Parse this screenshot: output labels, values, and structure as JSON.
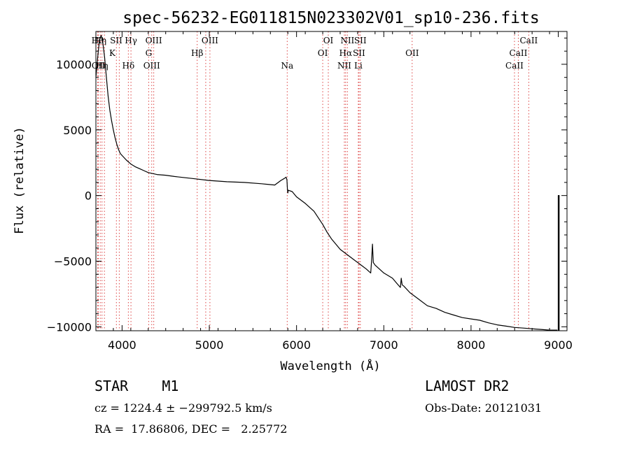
{
  "chart_data": {
    "type": "line",
    "title": "spec-56232-EG011815N023302V01_sp10-236.fits",
    "xlabel": "Wavelength (Å)",
    "ylabel": "Flux (relative)",
    "xlim": [
      3700,
      9100
    ],
    "ylim": [
      -10300,
      12500
    ],
    "x_ticks": [
      4000,
      5000,
      6000,
      7000,
      8000,
      9000
    ],
    "y_ticks": [
      -10000,
      -5000,
      0,
      5000,
      10000
    ],
    "x_tick_labels": [
      "4000",
      "5000",
      "6000",
      "7000",
      "8000",
      "9000"
    ],
    "y_tick_labels": [
      "−10000",
      "−5000",
      "0",
      "5000",
      "10000"
    ],
    "grid": false,
    "series": [
      {
        "x": [
          3700,
          3720,
          3740,
          3760,
          3780,
          3800,
          3820,
          3840,
          3860,
          3880,
          3900,
          3920,
          3940,
          3960,
          3980,
          4000,
          4050,
          4100,
          4150,
          4200,
          4250,
          4300,
          4400,
          4500,
          4600,
          4800,
          5000,
          5200,
          5400,
          5600,
          5750,
          5820,
          5860,
          5880,
          5890,
          5895,
          5900,
          5905,
          5950,
          6000,
          6100,
          6200,
          6300,
          6350,
          6400,
          6500,
          6600,
          6700,
          6800,
          6850,
          6860,
          6870,
          6880,
          6900,
          7000,
          7100,
          7150,
          7190,
          7200,
          7210,
          7230,
          7300,
          7400,
          7500,
          7600,
          7700,
          7800,
          7900,
          8000,
          8100,
          8200,
          8300,
          8400,
          8500,
          8600,
          8700,
          8800,
          8900,
          8990
        ],
        "y": [
          9000,
          10500,
          11800,
          12200,
          11600,
          10500,
          9000,
          7600,
          6500,
          5700,
          5000,
          4400,
          3900,
          3500,
          3200,
          3050,
          2700,
          2400,
          2200,
          2050,
          1900,
          1750,
          1600,
          1550,
          1450,
          1300,
          1150,
          1050,
          1000,
          900,
          800,
          1150,
          1300,
          1400,
          1200,
          500,
          200,
          400,
          300,
          -100,
          -600,
          -1200,
          -2200,
          -2800,
          -3300,
          -4100,
          -4600,
          -5100,
          -5600,
          -5900,
          -5000,
          -3700,
          -5100,
          -5300,
          -5900,
          -6300,
          -6700,
          -7000,
          -6300,
          -6800,
          -6900,
          -7400,
          -7900,
          -8400,
          -8600,
          -8900,
          -9100,
          -9300,
          -9400,
          -9500,
          -9700,
          -9850,
          -9950,
          -10050,
          -10100,
          -10150,
          -10200,
          -10250,
          -10250
        ]
      },
      {
        "x": [
          9000,
          9000,
          9010,
          9010
        ],
        "y": [
          -10300,
          0,
          0,
          -10300
        ]
      }
    ],
    "line_labels": [
      {
        "x": 3720,
        "row": 1,
        "text": "Hθ"
      },
      {
        "x": 3728,
        "row": 3,
        "text": "OII"
      },
      {
        "x": 3750,
        "row": 1,
        "text": "Hη"
      },
      {
        "x": 3770,
        "row": 3,
        "text": "Hη"
      },
      {
        "x": 3888,
        "row": 2,
        "text": "K"
      },
      {
        "x": 3933,
        "row": 1,
        "text": "SII"
      },
      {
        "x": 4072,
        "row": 3,
        "text": "Hδ"
      },
      {
        "x": 4102,
        "row": 1,
        "text": "Hγ"
      },
      {
        "x": 4305,
        "row": 2,
        "text": "G"
      },
      {
        "x": 4340,
        "row": 3,
        "text": "OIII"
      },
      {
        "x": 4363,
        "row": 1,
        "text": "OIII"
      },
      {
        "x": 4861,
        "row": 2,
        "text": "Hβ"
      },
      {
        "x": 5007,
        "row": 1,
        "text": "OIII"
      },
      {
        "x": 5893,
        "row": 3,
        "text": "Na"
      },
      {
        "x": 6300,
        "row": 2,
        "text": "OI"
      },
      {
        "x": 6364,
        "row": 1,
        "text": "OI"
      },
      {
        "x": 6548,
        "row": 3,
        "text": "NII"
      },
      {
        "x": 6563,
        "row": 2,
        "text": "Hα"
      },
      {
        "x": 6583,
        "row": 1,
        "text": "NII"
      },
      {
        "x": 6708,
        "row": 3,
        "text": "Li"
      },
      {
        "x": 6716,
        "row": 2,
        "text": "SII"
      },
      {
        "x": 6731,
        "row": 1,
        "text": "SII"
      },
      {
        "x": 7325,
        "row": 2,
        "text": "OII"
      },
      {
        "x": 8498,
        "row": 3,
        "text": "CaII"
      },
      {
        "x": 8542,
        "row": 2,
        "text": "CaII"
      },
      {
        "x": 8662,
        "row": 1,
        "text": "CaII"
      }
    ],
    "marker_lines": [
      3720,
      3728,
      3750,
      3770,
      3798,
      3935,
      3968,
      4072,
      4102,
      4305,
      4340,
      4363,
      4861,
      4959,
      5007,
      5893,
      6300,
      6364,
      6548,
      6563,
      6583,
      6708,
      6716,
      6731,
      7325,
      8498,
      8542,
      8662
    ]
  },
  "info": {
    "object": "STAR    M1",
    "survey": "LAMOST DR2",
    "cz": "cz = 1224.4 ± −299792.5 km/s",
    "obs_date": "Obs-Date: 20121031",
    "radec": "RA =  17.86806, DEC =   2.25772"
  }
}
